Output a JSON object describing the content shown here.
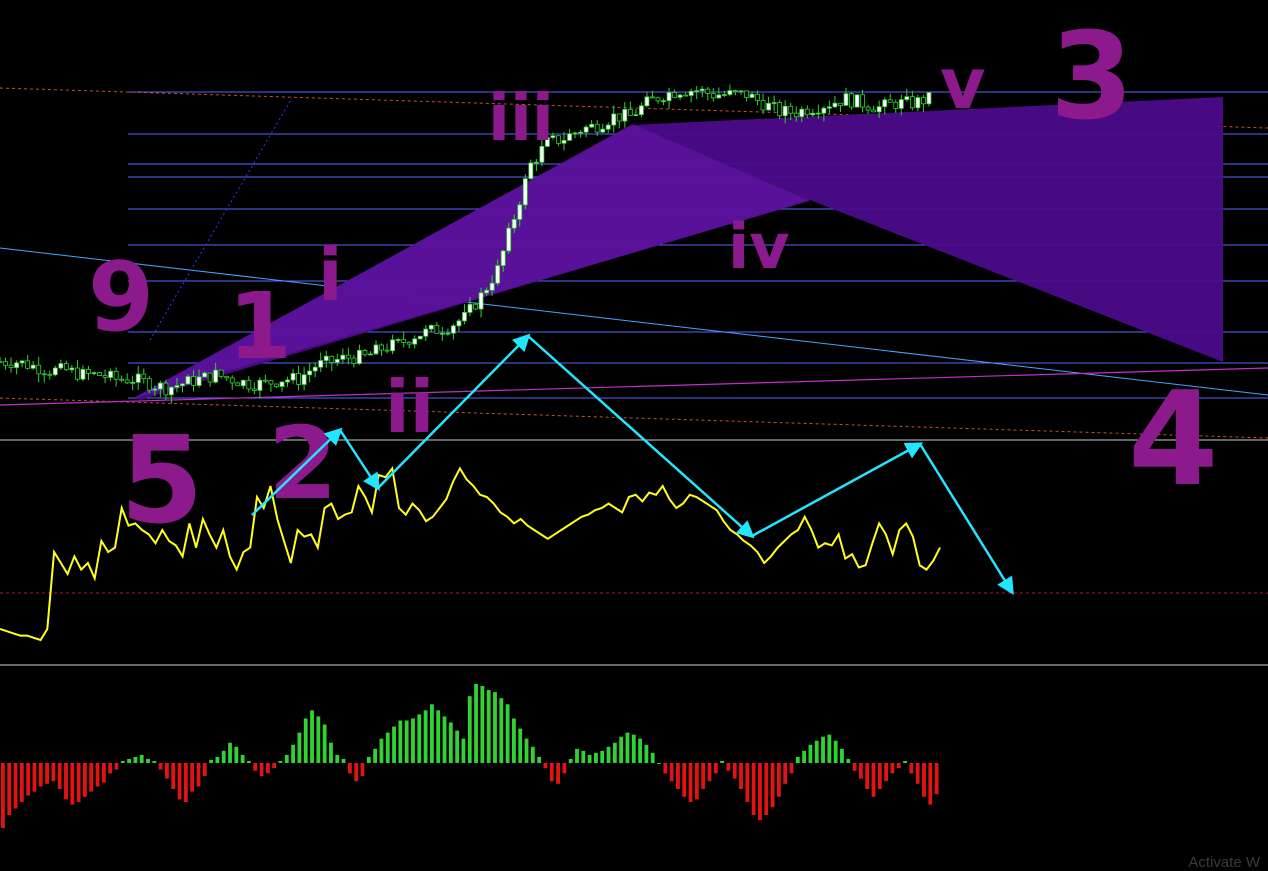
{
  "watermark": "Activate W",
  "annotations": {
    "labels": [
      "9",
      "1",
      "i",
      "5",
      "2",
      "ii",
      "iii",
      "iv",
      "v",
      "3",
      "4"
    ]
  },
  "colors": {
    "background": "#000000",
    "bull_candle": "#ffffff",
    "bear_candle": "#000000",
    "wick": "#2fd22f",
    "level_line": "#5a63ff",
    "dashed_level": "#c0532a",
    "trend_line": "#4aa3ff",
    "magenta_line": "#c230c9",
    "triangle_fill": "#4b0b8a",
    "annotation": "#8c1a8c",
    "oscillator": "#ffff1e",
    "wave_arrows": "#22e5ff",
    "hist_pos": "#32d232",
    "hist_neg": "#e11414"
  },
  "chart_data": [
    {
      "type": "candlestick",
      "panel": "price",
      "note": "values in chart units (0 = bottom, 100 = top of price panel)",
      "ylim": [
        0,
        100
      ],
      "xlim": [
        0,
        170
      ],
      "close_path": [
        [
          0,
          22
        ],
        [
          3,
          22
        ],
        [
          6,
          21
        ],
        [
          9,
          20
        ],
        [
          12,
          20
        ],
        [
          15,
          19
        ],
        [
          18,
          19
        ],
        [
          21,
          18
        ],
        [
          24,
          18
        ],
        [
          27,
          17
        ],
        [
          30,
          16
        ],
        [
          33,
          17
        ],
        [
          36,
          18
        ],
        [
          39,
          19
        ],
        [
          42,
          18
        ],
        [
          45,
          17
        ],
        [
          48,
          17
        ],
        [
          51,
          18
        ],
        [
          54,
          18
        ],
        [
          57,
          21
        ],
        [
          60,
          22
        ],
        [
          63,
          23
        ],
        [
          66,
          23
        ],
        [
          69,
          25
        ],
        [
          72,
          26
        ],
        [
          75,
          28
        ],
        [
          78,
          29
        ],
        [
          81,
          30
        ],
        [
          84,
          32
        ],
        [
          87,
          37
        ],
        [
          90,
          43
        ],
        [
          93,
          55
        ],
        [
          96,
          67
        ],
        [
          99,
          72
        ],
        [
          102,
          73
        ],
        [
          105,
          75
        ],
        [
          108,
          76
        ],
        [
          111,
          78
        ],
        [
          114,
          78
        ],
        [
          117,
          81
        ],
        [
          120,
          83
        ],
        [
          123,
          84
        ],
        [
          126,
          84
        ],
        [
          129,
          83
        ],
        [
          132,
          83
        ],
        [
          135,
          83
        ],
        [
          138,
          81
        ],
        [
          141,
          79
        ],
        [
          144,
          79
        ],
        [
          147,
          80
        ],
        [
          150,
          81
        ],
        [
          153,
          82
        ],
        [
          156,
          81
        ],
        [
          159,
          80
        ],
        [
          162,
          81
        ],
        [
          165,
          81
        ],
        [
          168,
          82
        ]
      ]
    },
    {
      "type": "line",
      "panel": "oscillator",
      "ylim": [
        0,
        100
      ],
      "values": [
        15,
        14,
        13,
        12,
        12,
        11,
        10,
        15,
        50,
        45,
        40,
        48,
        42,
        45,
        38,
        55,
        50,
        52,
        70,
        62,
        63,
        60,
        58,
        54,
        60,
        55,
        53,
        48,
        63,
        52,
        65,
        58,
        52,
        60,
        48,
        42,
        50,
        52,
        75,
        70,
        80,
        65,
        55,
        45,
        60,
        57,
        58,
        52,
        70,
        72,
        65,
        67,
        68,
        80,
        75,
        68,
        85,
        84,
        88,
        70,
        67,
        72,
        69,
        64,
        66,
        70,
        74,
        82,
        88,
        83,
        80,
        76,
        75,
        72,
        68,
        66,
        63,
        65,
        62,
        60,
        58,
        56,
        58,
        60,
        62,
        64,
        66,
        67,
        69,
        70,
        72,
        70,
        68,
        75,
        76,
        73,
        77,
        76,
        80,
        74,
        70,
        72,
        76,
        75,
        73,
        71,
        69,
        64,
        60,
        58,
        55,
        53,
        50,
        45,
        48,
        52,
        55,
        58,
        60,
        66,
        60,
        52,
        54,
        53,
        58,
        47,
        49,
        43,
        44,
        54,
        63,
        58,
        49,
        60,
        63,
        57,
        44,
        42,
        46,
        52
      ]
    },
    {
      "type": "bar",
      "panel": "histogram",
      "ylim": [
        -60,
        80
      ],
      "values": [
        -50,
        -40,
        -35,
        -30,
        -25,
        -22,
        -18,
        -16,
        -14,
        -20,
        -28,
        -32,
        -30,
        -26,
        -22,
        -18,
        -15,
        -8,
        -5,
        2,
        4,
        6,
        8,
        4,
        2,
        -5,
        -12,
        -20,
        -28,
        -30,
        -22,
        -18,
        -10,
        3,
        6,
        12,
        20,
        16,
        8,
        2,
        -6,
        -10,
        -8,
        -4,
        2,
        8,
        18,
        30,
        44,
        52,
        46,
        38,
        20,
        8,
        4,
        -8,
        -14,
        -10,
        6,
        14,
        24,
        30,
        36,
        42,
        42,
        44,
        48,
        52,
        58,
        52,
        46,
        40,
        32,
        24,
        66,
        78,
        76,
        72,
        70,
        64,
        58,
        44,
        34,
        24,
        16,
        6,
        -4,
        -14,
        -16,
        -8,
        4,
        14,
        12,
        8,
        10,
        12,
        16,
        20,
        26,
        30,
        28,
        24,
        18,
        10,
        0,
        -8,
        -14,
        -20,
        -26,
        -30,
        -28,
        -20,
        -14,
        -8,
        2,
        -6,
        -12,
        -20,
        -30,
        -40,
        -44,
        -40,
        -34,
        -26,
        -16,
        -8,
        6,
        12,
        18,
        22,
        26,
        28,
        22,
        14,
        4,
        -6,
        -12,
        -20,
        -26,
        -20,
        -14,
        -8,
        -4,
        2,
        -8,
        -16,
        -26,
        -32,
        -24
      ]
    }
  ]
}
